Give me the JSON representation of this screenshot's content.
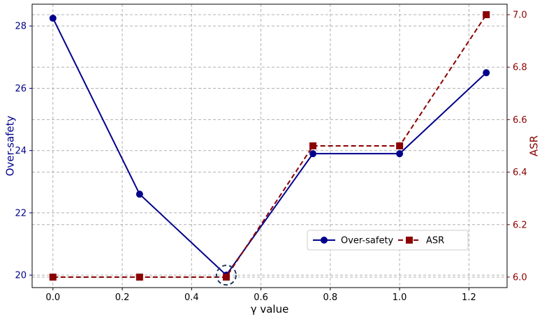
{
  "chart_data": {
    "type": "line",
    "title": "",
    "xlabel": "γ value",
    "x": [
      0.0,
      0.25,
      0.5,
      0.75,
      1.0,
      1.25
    ],
    "xlim": [
      -0.06,
      1.31
    ],
    "xticks": [
      "0.0",
      "0.2",
      "0.4",
      "0.6",
      "0.8",
      "1.0",
      "1.2"
    ],
    "grid": true,
    "legend_position": "center-right",
    "y_left": {
      "label": "Over-safety",
      "color": "#00008b",
      "ylim": [
        19.6,
        28.7
      ],
      "ticks": [
        "20",
        "22",
        "24",
        "26",
        "28"
      ]
    },
    "y_right": {
      "label": "ASR",
      "color": "#8b0000",
      "ylim": [
        5.96,
        7.04
      ],
      "ticks": [
        "6.0",
        "6.2",
        "6.4",
        "6.6",
        "6.8",
        "7.0"
      ]
    },
    "series": [
      {
        "name": "Over-safety",
        "axis": "left",
        "values": [
          28.25,
          22.6,
          20.0,
          23.9,
          23.9,
          26.5
        ],
        "color": "#00008b",
        "marker": "circle",
        "line_style": "solid"
      },
      {
        "name": "ASR",
        "axis": "right",
        "values": [
          6.0,
          6.0,
          6.0,
          6.5,
          6.5,
          7.0
        ],
        "color": "#8b0000",
        "marker": "square",
        "line_style": "dashed"
      }
    ],
    "highlight": {
      "x": 0.5,
      "shape": "dashed-circle",
      "color": "#1f3a5f"
    }
  }
}
